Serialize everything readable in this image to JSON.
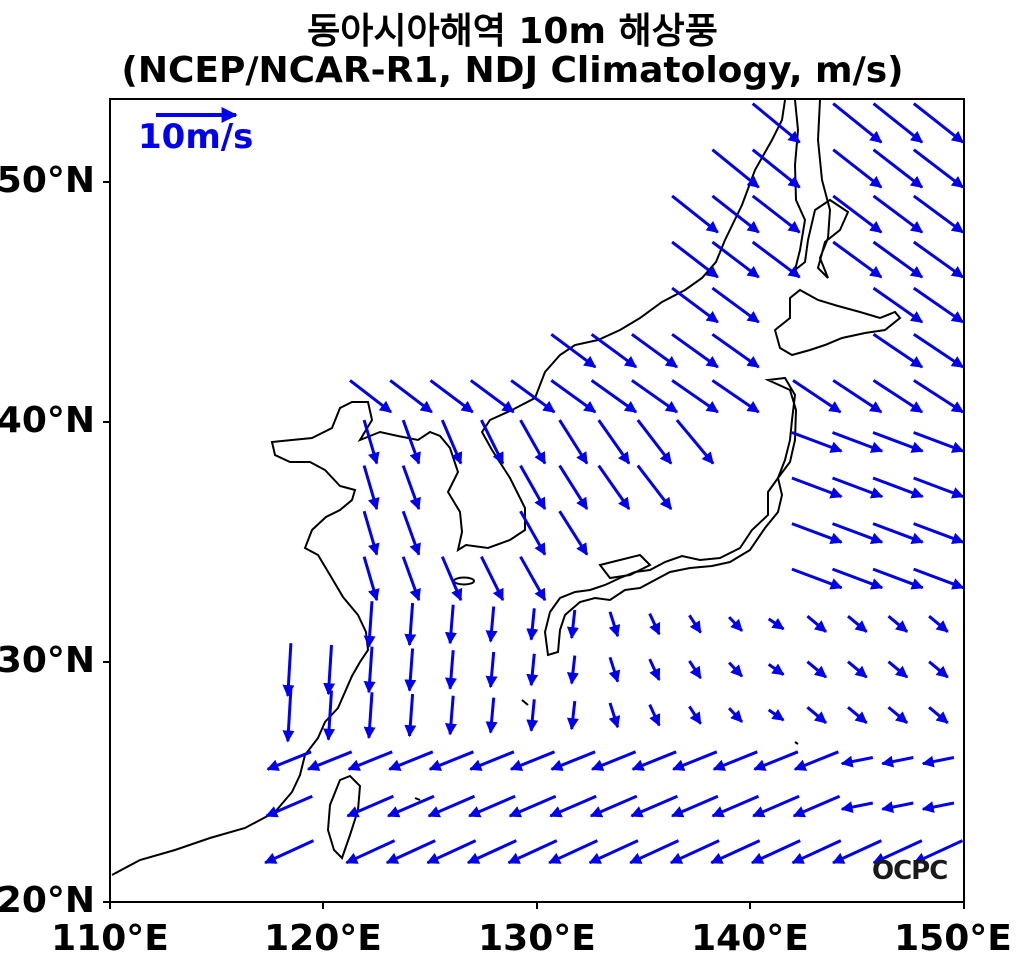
{
  "title": {
    "line1": "동아시아해역 10m 해상풍",
    "line2": "(NCEP/NCAR-R1, NDJ Climatology, m/s)"
  },
  "axes": {
    "lon_ticks": [
      "110°E",
      "120°E",
      "130°E",
      "140°E",
      "150°E"
    ],
    "lat_ticks": [
      "50°N",
      "40°N",
      "30°N",
      "20°N"
    ],
    "lon_range": [
      110,
      150
    ],
    "lat_range": [
      20,
      53.5
    ]
  },
  "reference_vector": {
    "label": "10m/s",
    "speed": 10
  },
  "logo": "OCPC",
  "colors": {
    "vector": "#0000ee",
    "coastline": "#000000",
    "frame": "#000000"
  }
}
